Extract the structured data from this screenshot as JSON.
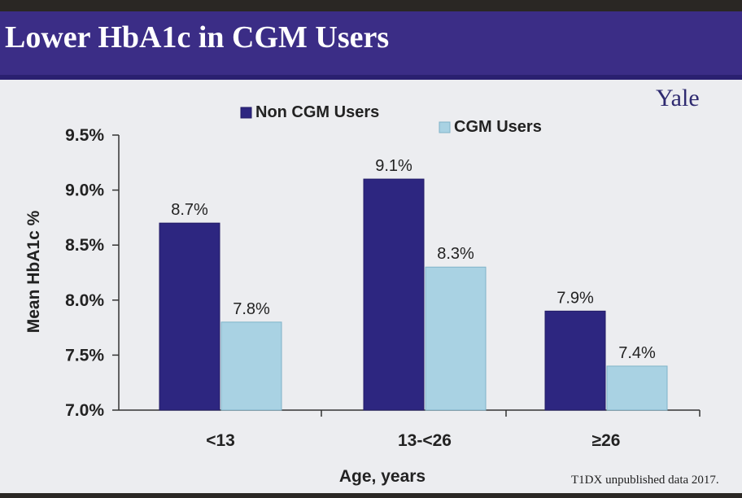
{
  "slide": {
    "title": "Lower HbA1c in CGM Users",
    "brand": "Yale",
    "footnote": "T1DX unpublished data 2017."
  },
  "colors": {
    "title_bar": "#3b2d86",
    "non_cgm": "#2d2680",
    "cgm": "#a9d2e3"
  },
  "chart_data": {
    "type": "bar",
    "title": "",
    "xlabel": "Age, years",
    "ylabel": "Mean HbA1c %",
    "categories": [
      "<13",
      "13-<26",
      "≥26"
    ],
    "ylim": [
      7.0,
      9.5
    ],
    "yticks": [
      7.0,
      7.5,
      8.0,
      8.5,
      9.0,
      9.5
    ],
    "ytick_labels": [
      "7.0%",
      "7.5%",
      "8.0%",
      "8.5%",
      "9.0%",
      "9.5%"
    ],
    "legend_position": "top",
    "grid": false,
    "series": [
      {
        "name": "Non CGM Users",
        "values": [
          8.7,
          9.1,
          7.9
        ],
        "labels": [
          "8.7%",
          "9.1%",
          "7.9%"
        ]
      },
      {
        "name": "CGM Users",
        "values": [
          7.8,
          8.3,
          7.4
        ],
        "labels": [
          "7.8%",
          "8.3%",
          "7.4%"
        ]
      }
    ]
  }
}
